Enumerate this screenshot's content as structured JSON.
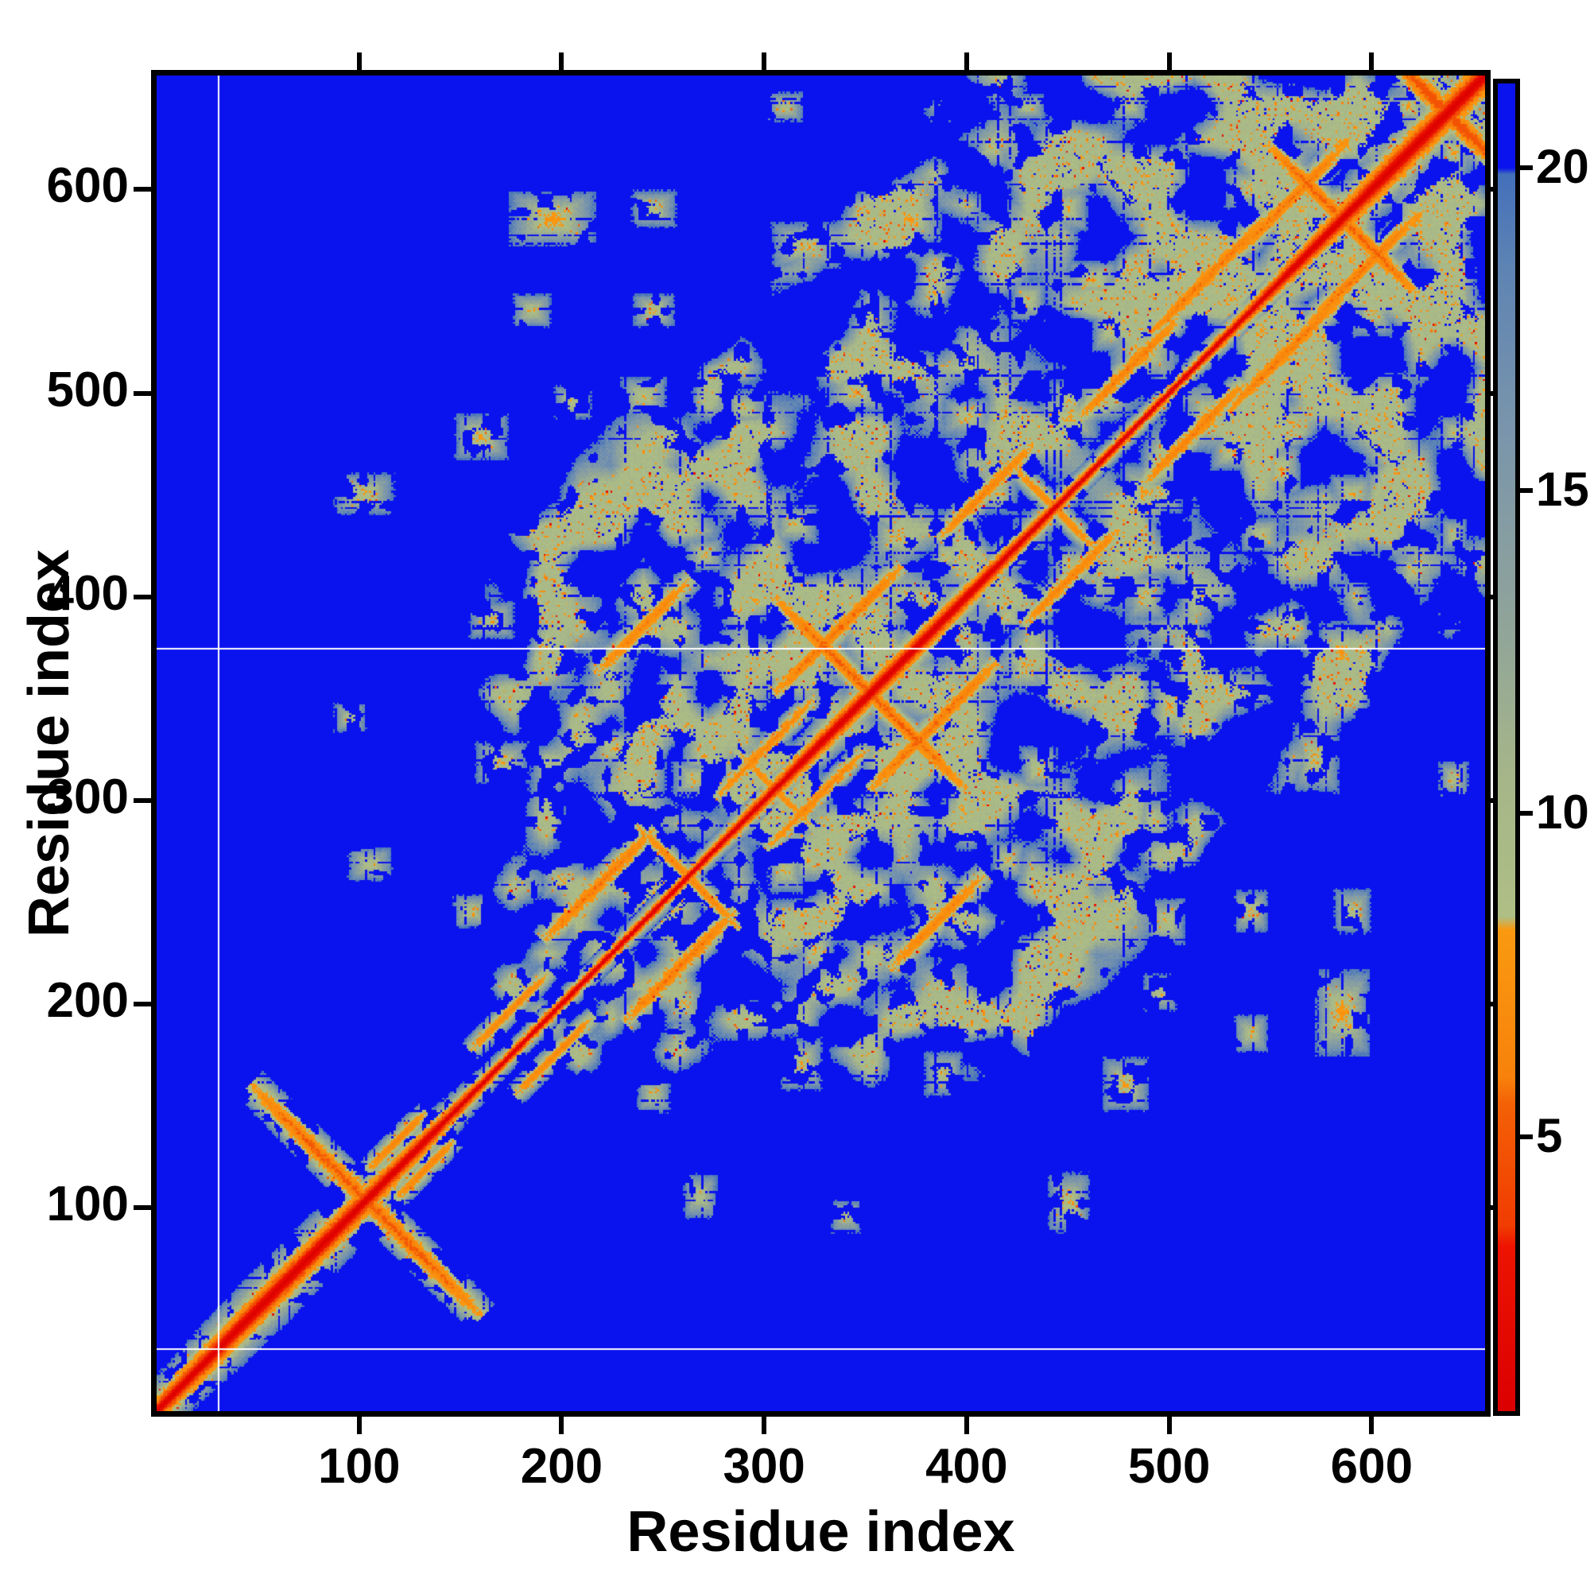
{
  "chart_data": {
    "type": "heatmap",
    "xlabel": "Residue index",
    "ylabel": "Residue index",
    "x_range": [
      0,
      656
    ],
    "y_range": [
      0,
      656
    ],
    "x_ticks": [
      100,
      200,
      300,
      400,
      500,
      600
    ],
    "y_ticks": [
      100,
      200,
      300,
      400,
      500,
      600
    ],
    "grid": false,
    "colorbar": {
      "range": [
        0.75,
        21.3
      ],
      "ticks": [
        5,
        10,
        15,
        20
      ],
      "over_cap_value": 20,
      "stops": [
        [
          0.75,
          "#dc0000"
        ],
        [
          3.3,
          "#ee1400"
        ],
        [
          3.6,
          "#f13c02"
        ],
        [
          5.5,
          "#f46106"
        ],
        [
          5.9,
          "#f8820b"
        ],
        [
          8.2,
          "#fa9a11"
        ],
        [
          8.4,
          "#afbf85"
        ],
        [
          10.6,
          "#a6b689"
        ],
        [
          13.0,
          "#90a49b"
        ],
        [
          16.0,
          "#7a95ac"
        ],
        [
          18.5,
          "#5e84b4"
        ],
        [
          19.9,
          "#4470bb"
        ],
        [
          20.0,
          "#0a12ee"
        ],
        [
          21.3,
          "#0a12ee"
        ]
      ]
    },
    "background_value": 21.3,
    "guide_lines": {
      "color": "#ffffff",
      "vertical_x": [
        30
      ],
      "horizontal_y": [
        30,
        374
      ]
    },
    "diagonal": {
      "core_value": 0.5,
      "slope_per_residue": 1.35,
      "halo_wave": [
        0.9,
        0.45,
        0.022,
        0.25,
        0.009
      ]
    },
    "cloud": {
      "region": [
        148,
        650
      ],
      "max_separation": 295,
      "grid_step": 16,
      "base_value": 12.0,
      "depth": 9.5
    },
    "noise": {
      "seed": 7,
      "hole_threshold": 0.38,
      "hole_step": 6,
      "stripe_p": 0.09,
      "jitter": 0.8,
      "checker": 0.55,
      "speckle_orange_p": 0.035,
      "speckle_node_p": 0.22,
      "speckle_red_p": 0.004
    },
    "features": [
      {
        "t": "anti",
        "x": 103,
        "y": 103,
        "l": 115,
        "w": 6,
        "c": 5.2
      },
      {
        "t": "anti",
        "x": 352,
        "y": 352,
        "l": 95,
        "w": 5,
        "c": 5.4
      },
      {
        "t": "anti",
        "x": 585,
        "y": 585,
        "l": 75,
        "w": 5,
        "c": 5.4
      },
      {
        "t": "anti",
        "x": 637,
        "y": 637,
        "l": 62,
        "w": 6,
        "c": 4.6
      },
      {
        "t": "anti",
        "x": 262,
        "y": 262,
        "l": 52,
        "w": 4,
        "c": 6.4
      },
      {
        "t": "anti",
        "x": 443,
        "y": 443,
        "l": 46,
        "w": 4,
        "c": 6.8
      },
      {
        "t": "anti",
        "x": 305,
        "y": 305,
        "l": 40,
        "w": 4,
        "c": 7.0
      },
      {
        "t": "para",
        "x": 336,
        "y": 383,
        "l": 64,
        "w": 5,
        "c": 5.8
      },
      {
        "t": "para",
        "x": 218,
        "y": 258,
        "l": 56,
        "w": 5,
        "c": 6.0
      },
      {
        "t": "para",
        "x": 300,
        "y": 325,
        "l": 50,
        "w": 4,
        "c": 6.5
      },
      {
        "t": "para",
        "x": 174,
        "y": 196,
        "l": 40,
        "w": 4,
        "c": 6.5
      },
      {
        "t": "para",
        "x": 410,
        "y": 452,
        "l": 50,
        "w": 5,
        "c": 6.5
      },
      {
        "t": "para",
        "x": 520,
        "y": 558,
        "l": 60,
        "w": 5,
        "c": 6.0
      },
      {
        "t": "para",
        "x": 560,
        "y": 595,
        "l": 56,
        "w": 5,
        "c": 6.0
      },
      {
        "t": "para",
        "x": 480,
        "y": 512,
        "l": 50,
        "w": 5,
        "c": 6.2
      },
      {
        "t": "para",
        "x": 240,
        "y": 385,
        "l": 48,
        "w": 5,
        "c": 6.5
      },
      {
        "t": "para",
        "x": 118,
        "y": 132,
        "l": 30,
        "w": 4,
        "c": 6.5
      },
      {
        "t": "blob",
        "x": 102,
        "y": 450,
        "rx": 16,
        "ry": 11,
        "c": 8.6
      },
      {
        "t": "blob",
        "x": 195,
        "y": 585,
        "rx": 22,
        "ry": 14,
        "c": 7.5
      },
      {
        "t": "blob",
        "x": 245,
        "y": 590,
        "rx": 12,
        "ry": 10,
        "c": 9.0
      },
      {
        "t": "blob",
        "x": 320,
        "y": 572,
        "rx": 18,
        "ry": 12,
        "c": 8.5
      },
      {
        "t": "blob",
        "x": 372,
        "y": 585,
        "rx": 16,
        "ry": 12,
        "c": 7.8
      },
      {
        "t": "blob",
        "x": 430,
        "y": 585,
        "rx": 12,
        "ry": 10,
        "c": 9.0
      },
      {
        "t": "blob",
        "x": 462,
        "y": 555,
        "rx": 14,
        "ry": 10,
        "c": 8.2
      },
      {
        "t": "blob",
        "x": 490,
        "y": 588,
        "rx": 12,
        "ry": 10,
        "c": 9.0
      },
      {
        "t": "blob",
        "x": 530,
        "y": 545,
        "rx": 14,
        "ry": 11,
        "c": 8.0
      },
      {
        "t": "blob",
        "x": 160,
        "y": 478,
        "rx": 14,
        "ry": 12,
        "c": 8.2
      },
      {
        "t": "blob",
        "x": 205,
        "y": 495,
        "rx": 10,
        "ry": 9,
        "c": 9.0
      },
      {
        "t": "blob",
        "x": 240,
        "y": 498,
        "rx": 12,
        "ry": 10,
        "c": 8.4
      },
      {
        "t": "blob",
        "x": 290,
        "y": 492,
        "rx": 12,
        "ry": 10,
        "c": 9.0
      },
      {
        "t": "blob",
        "x": 345,
        "y": 500,
        "rx": 16,
        "ry": 11,
        "c": 8.4
      },
      {
        "t": "blob",
        "x": 400,
        "y": 488,
        "rx": 14,
        "ry": 10,
        "c": 8.8
      },
      {
        "t": "blob",
        "x": 450,
        "y": 487,
        "rx": 16,
        "ry": 12,
        "c": 8.0
      },
      {
        "t": "blob",
        "x": 487,
        "y": 520,
        "rx": 18,
        "ry": 14,
        "c": 7.6
      },
      {
        "t": "blob",
        "x": 215,
        "y": 448,
        "rx": 12,
        "ry": 10,
        "c": 8.8
      },
      {
        "t": "blob",
        "x": 250,
        "y": 443,
        "rx": 10,
        "ry": 9,
        "c": 8.6
      },
      {
        "t": "blob",
        "x": 315,
        "y": 435,
        "rx": 12,
        "ry": 10,
        "c": 8.5
      },
      {
        "t": "blob",
        "x": 365,
        "y": 428,
        "rx": 14,
        "ry": 11,
        "c": 8.6
      },
      {
        "t": "blob",
        "x": 165,
        "y": 388,
        "rx": 12,
        "ry": 10,
        "c": 8.8
      },
      {
        "t": "blob",
        "x": 245,
        "y": 383,
        "rx": 12,
        "ry": 10,
        "c": 8.4
      },
      {
        "t": "blob",
        "x": 295,
        "y": 398,
        "rx": 10,
        "ry": 9,
        "c": 8.2
      },
      {
        "t": "blob",
        "x": 170,
        "y": 318,
        "rx": 14,
        "ry": 11,
        "c": 8.5
      },
      {
        "t": "blob",
        "x": 225,
        "y": 325,
        "rx": 12,
        "ry": 10,
        "c": 8.3
      },
      {
        "t": "blob",
        "x": 265,
        "y": 310,
        "rx": 12,
        "ry": 10,
        "c": 8.8
      },
      {
        "t": "blob",
        "x": 270,
        "y": 322,
        "rx": 12,
        "ry": 9,
        "c": 8.4
      },
      {
        "t": "blob",
        "x": 270,
        "y": 420,
        "rx": 10,
        "ry": 9,
        "c": 8.8
      },
      {
        "t": "blob",
        "x": 245,
        "y": 540,
        "rx": 11,
        "ry": 9,
        "c": 8.6
      },
      {
        "t": "blob",
        "x": 185,
        "y": 540,
        "rx": 10,
        "ry": 9,
        "c": 8.8
      },
      {
        "t": "blob",
        "x": 540,
        "y": 600,
        "rx": 14,
        "ry": 11,
        "c": 8.5
      },
      {
        "t": "blob",
        "x": 585,
        "y": 622,
        "rx": 16,
        "ry": 12,
        "c": 7.5
      },
      {
        "t": "blob",
        "x": 618,
        "y": 640,
        "rx": 10,
        "ry": 8,
        "c": 8.0
      },
      {
        "t": "blob",
        "x": 200,
        "y": 260,
        "rx": 12,
        "ry": 10,
        "c": 8.6
      },
      {
        "t": "blob",
        "x": 155,
        "y": 245,
        "rx": 10,
        "ry": 9,
        "c": 9.0
      },
      {
        "t": "blob",
        "x": 105,
        "y": 268,
        "rx": 12,
        "ry": 9,
        "c": 9.0
      },
      {
        "t": "blob",
        "x": 95,
        "y": 340,
        "rx": 9,
        "ry": 8,
        "c": 9.5
      },
      {
        "t": "blob",
        "x": 565,
        "y": 590,
        "rx": 12,
        "ry": 9,
        "c": 8.0
      },
      {
        "t": "blob",
        "x": 310,
        "y": 640,
        "rx": 10,
        "ry": 8,
        "c": 9.2
      },
      {
        "t": "blob",
        "x": 560,
        "y": 640,
        "rx": 10,
        "ry": 8,
        "c": 9.0
      },
      {
        "t": "blob",
        "x": 480,
        "y": 640,
        "rx": 9,
        "ry": 8,
        "c": 9.3
      },
      {
        "t": "blob",
        "x": 430,
        "y": 640,
        "rx": 9,
        "ry": 7,
        "c": 9.3
      },
      {
        "t": "blob",
        "x": 495,
        "y": 450,
        "rx": 12,
        "ry": 10,
        "c": 8.6
      },
      {
        "t": "blob",
        "x": 530,
        "y": 470,
        "rx": 11,
        "ry": 9,
        "c": 8.6
      },
      {
        "t": "blob",
        "x": 545,
        "y": 430,
        "rx": 11,
        "ry": 9,
        "c": 8.8
      },
      {
        "t": "blob",
        "x": 590,
        "y": 450,
        "rx": 12,
        "ry": 10,
        "c": 8.6
      },
      {
        "t": "blob",
        "x": 610,
        "y": 500,
        "rx": 12,
        "ry": 10,
        "c": 8.6
      },
      {
        "t": "blob",
        "x": 620,
        "y": 412,
        "rx": 10,
        "ry": 9,
        "c": 8.8
      },
      {
        "t": "blob",
        "x": 595,
        "y": 372,
        "rx": 11,
        "ry": 9,
        "c": 8.6
      },
      {
        "t": "blob",
        "x": 420,
        "y": 390,
        "rx": 10,
        "ry": 9,
        "c": 8.8
      },
      {
        "t": "blob",
        "x": 450,
        "y": 415,
        "rx": 10,
        "ry": 9,
        "c": 8.8
      }
    ]
  }
}
